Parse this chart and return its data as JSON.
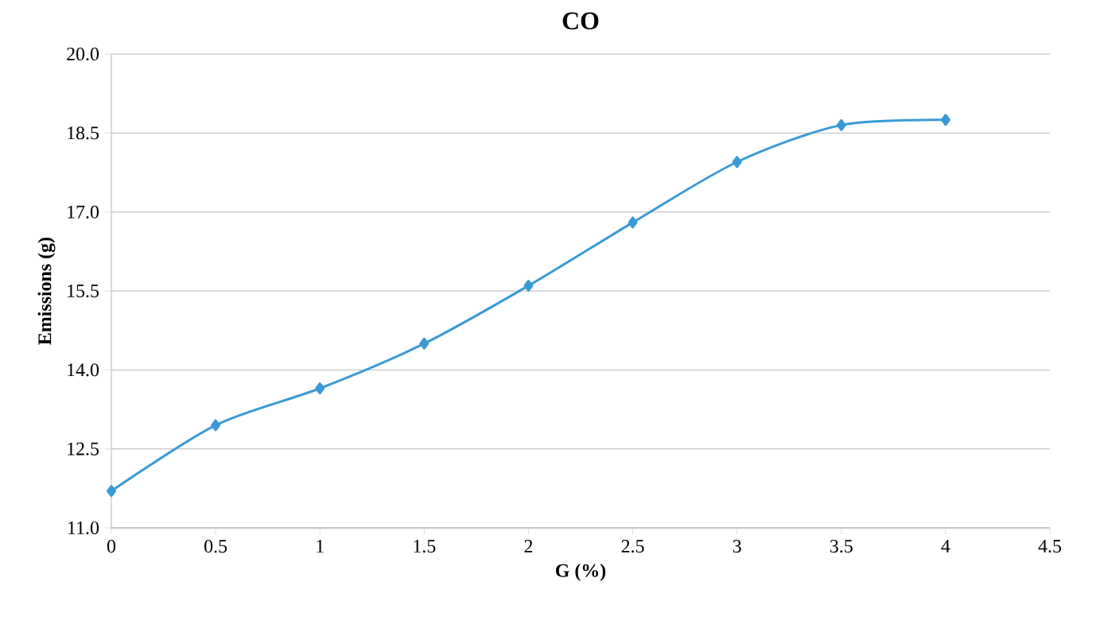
{
  "chart_data": {
    "type": "line",
    "title": "CO",
    "xlabel": "G (%)",
    "ylabel": "Emissions (g)",
    "x": [
      0,
      0.5,
      1,
      1.5,
      2,
      2.5,
      3,
      3.5,
      4
    ],
    "series": [
      {
        "color": "#3a9ad5",
        "values": [
          11.7,
          12.95,
          13.65,
          14.5,
          15.6,
          16.8,
          17.95,
          18.65,
          18.75
        ]
      }
    ],
    "xlim": [
      0,
      4.5
    ],
    "ylim": [
      11.0,
      20.0
    ],
    "xticks": [
      0,
      0.5,
      1,
      1.5,
      2,
      2.5,
      3,
      3.5,
      4,
      4.5
    ],
    "yticks": [
      {
        "value": 11,
        "label": "11.0"
      },
      {
        "value": 12.5,
        "label": "12.5"
      },
      {
        "value": 14,
        "label": "14.0"
      },
      {
        "value": 15.5,
        "label": "15.5"
      },
      {
        "value": 17,
        "label": "17.0"
      },
      {
        "value": 18.5,
        "label": "18.5"
      },
      {
        "value": 20,
        "label": "20.0"
      }
    ],
    "grid": "y",
    "marker": "diamond",
    "line_style": "solid",
    "legend": false
  }
}
